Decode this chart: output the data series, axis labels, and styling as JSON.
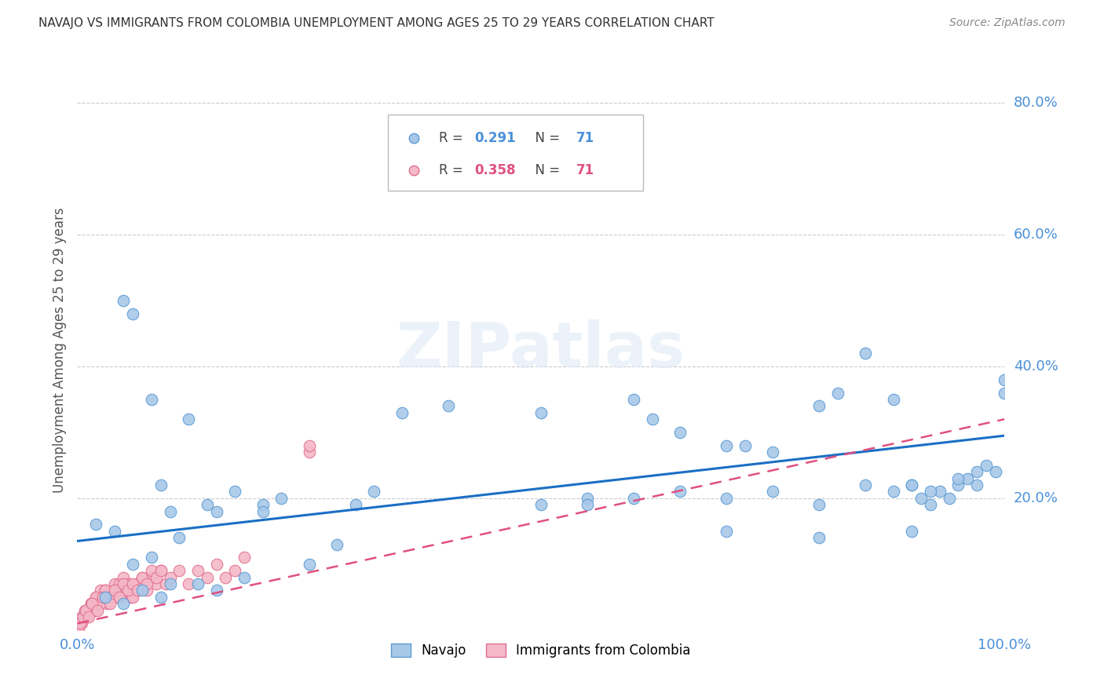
{
  "title": "NAVAJO VS IMMIGRANTS FROM COLOMBIA UNEMPLOYMENT AMONG AGES 25 TO 29 YEARS CORRELATION CHART",
  "source": "Source: ZipAtlas.com",
  "ylabel": "Unemployment Among Ages 25 to 29 years",
  "xlim": [
    0.0,
    1.0
  ],
  "ylim": [
    0.0,
    0.85
  ],
  "navajo_color": "#a8c8e8",
  "navajo_edge_color": "#5b9bd5",
  "colombia_color": "#f4b8c8",
  "colombia_edge_color": "#e07090",
  "trendline_navajo_color": "#1a6fc4",
  "trendline_colombia_color": "#e05080",
  "legend_navajo_R": "0.291",
  "legend_navajo_N": "71",
  "legend_colombia_R": "0.358",
  "legend_colombia_N": "71",
  "watermark": "ZIPatlas",
  "navajo_x": [
    0.02,
    0.04,
    0.05,
    0.06,
    0.08,
    0.09,
    0.1,
    0.11,
    0.12,
    0.14,
    0.15,
    0.17,
    0.2,
    0.22,
    0.3,
    0.32,
    0.35,
    0.4,
    0.5,
    0.55,
    0.6,
    0.62,
    0.65,
    0.7,
    0.72,
    0.75,
    0.8,
    0.82,
    0.85,
    0.88,
    0.9,
    0.91,
    0.92,
    0.93,
    0.94,
    0.95,
    0.96,
    0.97,
    0.98,
    0.99,
    1.0,
    0.03,
    0.05,
    0.07,
    0.09,
    0.1,
    0.13,
    0.15,
    0.18,
    0.06,
    0.08,
    0.2,
    0.25,
    0.28,
    0.65,
    0.7,
    0.75,
    0.8,
    0.85,
    0.88,
    0.9,
    0.92,
    0.95,
    0.97,
    1.0,
    0.5,
    0.6,
    0.7,
    0.8,
    0.9,
    0.55
  ],
  "navajo_y": [
    0.16,
    0.15,
    0.5,
    0.48,
    0.35,
    0.22,
    0.18,
    0.14,
    0.32,
    0.19,
    0.18,
    0.21,
    0.19,
    0.2,
    0.19,
    0.21,
    0.33,
    0.34,
    0.33,
    0.2,
    0.35,
    0.32,
    0.21,
    0.28,
    0.28,
    0.27,
    0.34,
    0.36,
    0.42,
    0.35,
    0.22,
    0.2,
    0.19,
    0.21,
    0.2,
    0.22,
    0.23,
    0.24,
    0.25,
    0.24,
    0.38,
    0.05,
    0.04,
    0.06,
    0.05,
    0.07,
    0.07,
    0.06,
    0.08,
    0.1,
    0.11,
    0.18,
    0.1,
    0.13,
    0.3,
    0.2,
    0.21,
    0.19,
    0.22,
    0.21,
    0.22,
    0.21,
    0.23,
    0.22,
    0.36,
    0.19,
    0.2,
    0.15,
    0.14,
    0.15,
    0.19
  ],
  "colombia_x": [
    0.0,
    0.005,
    0.008,
    0.01,
    0.012,
    0.015,
    0.018,
    0.02,
    0.022,
    0.025,
    0.028,
    0.03,
    0.032,
    0.035,
    0.038,
    0.04,
    0.042,
    0.045,
    0.048,
    0.05,
    0.052,
    0.055,
    0.058,
    0.06,
    0.065,
    0.07,
    0.075,
    0.08,
    0.085,
    0.09,
    0.095,
    0.1,
    0.11,
    0.12,
    0.13,
    0.14,
    0.15,
    0.16,
    0.17,
    0.18,
    0.002,
    0.005,
    0.008,
    0.01,
    0.015,
    0.02,
    0.025,
    0.03,
    0.035,
    0.04,
    0.045,
    0.05,
    0.055,
    0.06,
    0.065,
    0.07,
    0.075,
    0.08,
    0.085,
    0.09,
    0.001,
    0.003,
    0.006,
    0.009,
    0.012,
    0.016,
    0.022,
    0.028,
    0.035,
    0.25,
    0.25
  ],
  "colombia_y": [
    0.0,
    0.01,
    0.02,
    0.02,
    0.03,
    0.04,
    0.03,
    0.05,
    0.04,
    0.06,
    0.05,
    0.06,
    0.04,
    0.05,
    0.06,
    0.07,
    0.05,
    0.07,
    0.06,
    0.08,
    0.06,
    0.07,
    0.05,
    0.05,
    0.07,
    0.08,
    0.06,
    0.08,
    0.07,
    0.09,
    0.07,
    0.08,
    0.09,
    0.07,
    0.09,
    0.08,
    0.1,
    0.08,
    0.09,
    0.11,
    0.01,
    0.02,
    0.03,
    0.03,
    0.04,
    0.05,
    0.04,
    0.06,
    0.05,
    0.06,
    0.05,
    0.07,
    0.06,
    0.07,
    0.06,
    0.08,
    0.07,
    0.09,
    0.08,
    0.09,
    0.0,
    0.01,
    0.02,
    0.03,
    0.02,
    0.04,
    0.03,
    0.05,
    0.04,
    0.27,
    0.28
  ],
  "navajo_trendline_x": [
    0.0,
    1.0
  ],
  "navajo_trendline_y": [
    0.135,
    0.295
  ],
  "colombia_trendline_x": [
    0.0,
    1.0
  ],
  "colombia_trendline_y": [
    0.01,
    0.32
  ]
}
